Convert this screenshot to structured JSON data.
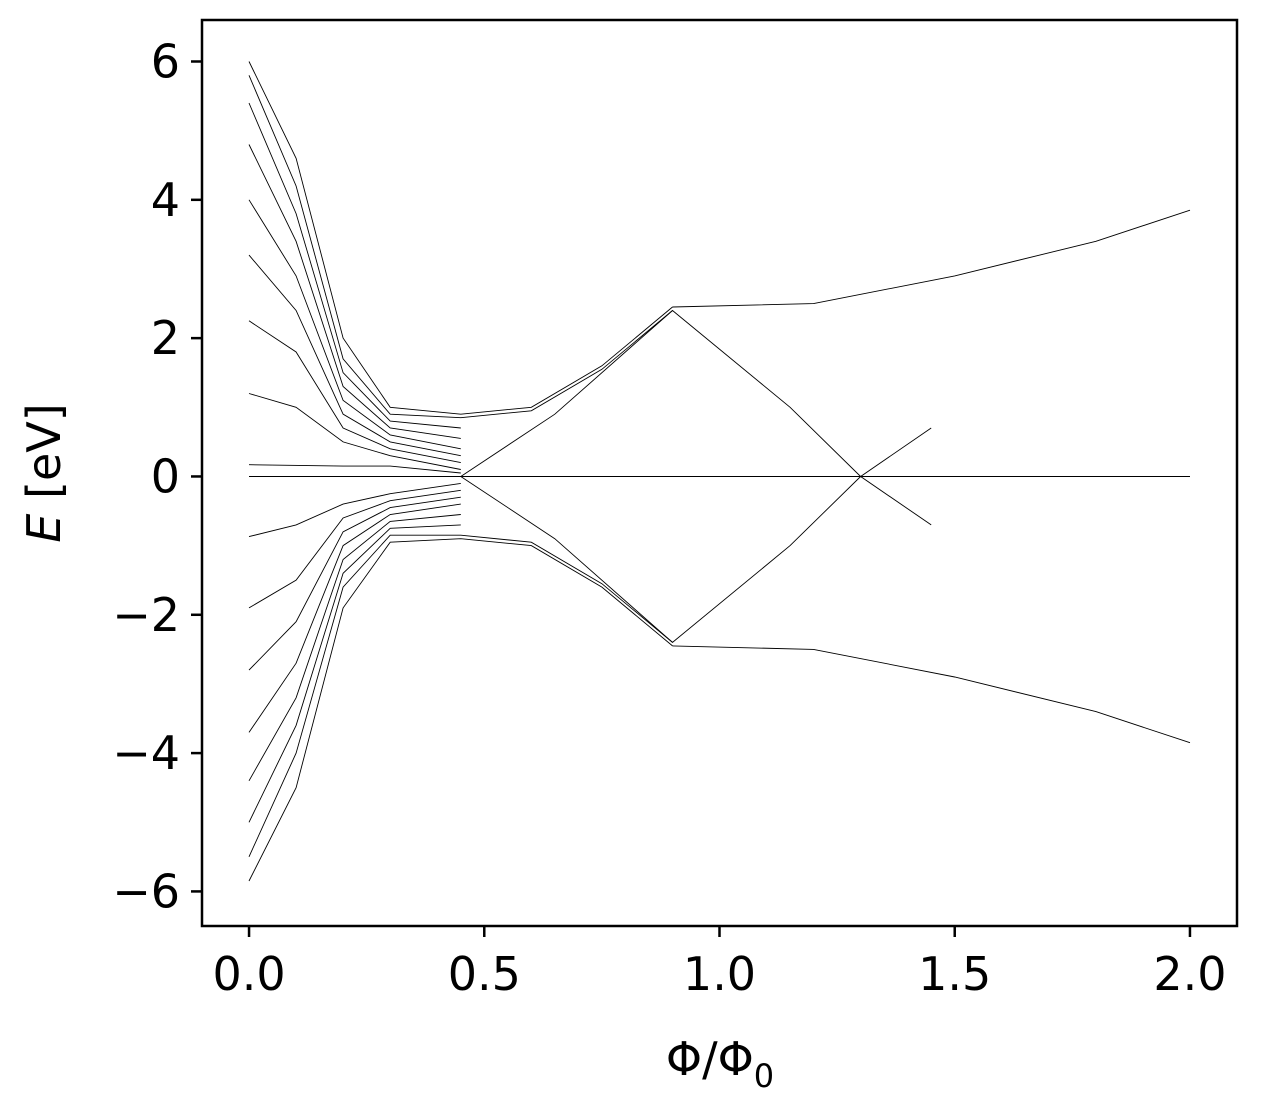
{
  "chart_data": {
    "type": "line",
    "title": "",
    "xlabel": "Φ/Φ",
    "xlabel_sub": "0",
    "ylabel": "E",
    "ylabel_unit": " [eV]",
    "xlim": [
      -0.1,
      2.1
    ],
    "ylim": [
      -6.5,
      6.6
    ],
    "xticks": [
      0.0,
      0.5,
      1.0,
      1.5,
      2.0
    ],
    "xtick_labels": [
      "0.0",
      "0.5",
      "1.0",
      "1.5",
      "2.0"
    ],
    "yticks": [
      -6,
      -4,
      -2,
      0,
      2,
      4,
      6
    ],
    "ytick_labels": [
      "−6",
      "−4",
      "−2",
      "0",
      "2",
      "4",
      "6"
    ],
    "grid": false,
    "legend": "none",
    "line_color": "#000000",
    "series": [
      {
        "x": [
          0.0,
          0.1,
          0.2,
          0.3,
          0.45,
          0.6,
          0.75,
          0.9
        ],
        "values": [
          6.0,
          4.6,
          2.0,
          1.0,
          0.9,
          1.0,
          1.6,
          2.45
        ]
      },
      {
        "x": [
          0.0,
          0.1,
          0.2,
          0.3,
          0.45,
          0.6,
          0.75,
          0.9
        ],
        "values": [
          5.8,
          4.2,
          1.7,
          0.9,
          0.85,
          0.95,
          1.55,
          2.4
        ]
      },
      {
        "x": [
          0.0,
          0.1,
          0.2,
          0.3,
          0.45
        ],
        "values": [
          5.4,
          3.8,
          1.5,
          0.8,
          0.7
        ]
      },
      {
        "x": [
          0.0,
          0.1,
          0.2,
          0.3,
          0.45
        ],
        "values": [
          4.8,
          3.4,
          1.3,
          0.7,
          0.55
        ]
      },
      {
        "x": [
          0.0,
          0.1,
          0.2,
          0.3,
          0.45
        ],
        "values": [
          4.0,
          2.9,
          1.1,
          0.6,
          0.4
        ]
      },
      {
        "x": [
          0.0,
          0.1,
          0.2,
          0.3,
          0.45
        ],
        "values": [
          3.2,
          2.4,
          0.9,
          0.5,
          0.3
        ]
      },
      {
        "x": [
          0.0,
          0.1,
          0.2,
          0.3,
          0.45
        ],
        "values": [
          2.25,
          1.8,
          0.7,
          0.4,
          0.2
        ]
      },
      {
        "x": [
          0.0,
          0.1,
          0.2,
          0.3,
          0.45
        ],
        "values": [
          1.2,
          1.0,
          0.5,
          0.3,
          0.1
        ]
      },
      {
        "x": [
          0.0,
          0.2,
          0.3,
          0.45
        ],
        "values": [
          0.17,
          0.15,
          0.15,
          0.05
        ]
      },
      {
        "x": [
          0.0,
          0.1,
          0.2,
          0.3,
          0.45
        ],
        "values": [
          -0.87,
          -0.7,
          -0.4,
          -0.25,
          -0.1
        ]
      },
      {
        "x": [
          0.0,
          0.1,
          0.2,
          0.3,
          0.45
        ],
        "values": [
          -1.9,
          -1.5,
          -0.6,
          -0.35,
          -0.2
        ]
      },
      {
        "x": [
          0.0,
          0.1,
          0.2,
          0.3,
          0.45
        ],
        "values": [
          -2.8,
          -2.1,
          -0.8,
          -0.45,
          -0.3
        ]
      },
      {
        "x": [
          0.0,
          0.1,
          0.2,
          0.3,
          0.45
        ],
        "values": [
          -3.7,
          -2.7,
          -1.0,
          -0.55,
          -0.4
        ]
      },
      {
        "x": [
          0.0,
          0.1,
          0.2,
          0.3,
          0.45
        ],
        "values": [
          -4.4,
          -3.2,
          -1.2,
          -0.65,
          -0.55
        ]
      },
      {
        "x": [
          0.0,
          0.1,
          0.2,
          0.3,
          0.45
        ],
        "values": [
          -5.0,
          -3.6,
          -1.4,
          -0.75,
          -0.7
        ]
      },
      {
        "x": [
          0.0,
          0.1,
          0.2,
          0.3,
          0.45,
          0.6,
          0.75,
          0.9
        ],
        "values": [
          -5.5,
          -4.0,
          -1.6,
          -0.85,
          -0.85,
          -0.95,
          -1.55,
          -2.4
        ]
      },
      {
        "x": [
          0.0,
          0.1,
          0.2,
          0.3,
          0.45,
          0.6,
          0.75,
          0.9
        ],
        "values": [
          -5.85,
          -4.5,
          -1.9,
          -0.95,
          -0.9,
          -1.0,
          -1.6,
          -2.45
        ]
      },
      {
        "x": [
          0.9,
          1.2,
          1.5,
          1.8,
          2.0
        ],
        "values": [
          2.45,
          2.5,
          2.9,
          3.4,
          3.85
        ]
      },
      {
        "x": [
          0.9,
          1.2,
          1.5,
          1.8,
          2.0
        ],
        "values": [
          -2.45,
          -2.5,
          -2.9,
          -3.4,
          -3.85
        ]
      },
      {
        "x": [
          0.45,
          0.65,
          0.9,
          1.15,
          1.3,
          1.45
        ],
        "values": [
          0.0,
          0.9,
          2.4,
          1.0,
          0.0,
          0.7
        ]
      },
      {
        "x": [
          0.45,
          0.65,
          0.9,
          1.15,
          1.3,
          1.45
        ],
        "values": [
          0.0,
          -0.9,
          -2.4,
          -1.0,
          0.0,
          -0.7
        ]
      },
      {
        "x": [
          0.0,
          2.0
        ],
        "values": [
          0.0,
          0.0
        ]
      }
    ]
  }
}
